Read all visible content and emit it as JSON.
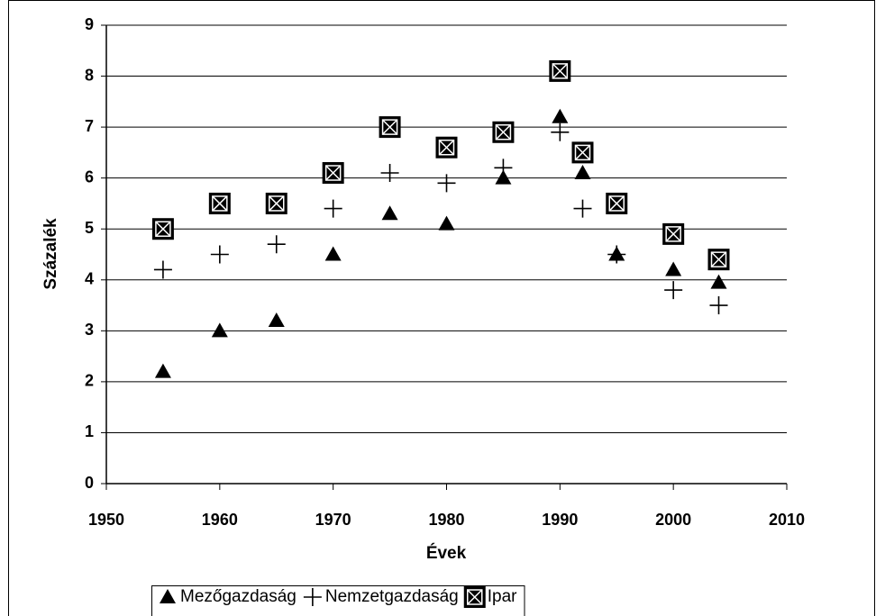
{
  "chart_data": {
    "type": "scatter",
    "x": [
      1955,
      1960,
      1965,
      1970,
      1975,
      1980,
      1985,
      1990,
      1992,
      1995,
      2000,
      2004
    ],
    "series": [
      {
        "name": "Mezőgazdaság",
        "color": "#000000",
        "marker": "triangle",
        "values": [
          2.2,
          3.0,
          3.2,
          4.5,
          5.3,
          5.1,
          6.0,
          7.2,
          6.1,
          4.5,
          4.2,
          3.95
        ]
      },
      {
        "name": "Nemzetgazdaság",
        "color": "#000000",
        "marker": "plus",
        "values": [
          4.2,
          4.5,
          4.7,
          5.4,
          6.1,
          5.9,
          6.2,
          6.9,
          5.4,
          4.5,
          3.8,
          3.5
        ]
      },
      {
        "name": "Ipar",
        "color": "#000000",
        "marker": "boxx",
        "values": [
          5.0,
          5.5,
          5.5,
          6.1,
          7.0,
          6.6,
          6.9,
          8.1,
          6.5,
          5.5,
          4.9,
          4.4
        ]
      }
    ],
    "xlabel": "Évek",
    "ylabel": "Százalék",
    "xlim": [
      1950,
      2010
    ],
    "xticks": [
      1950,
      1960,
      1970,
      1980,
      1990,
      2000,
      2010
    ],
    "ylim": [
      0,
      9
    ],
    "yticks": [
      0,
      1,
      2,
      3,
      4,
      5,
      6,
      7,
      8,
      9
    ],
    "grid": true,
    "legend": "bottom"
  }
}
